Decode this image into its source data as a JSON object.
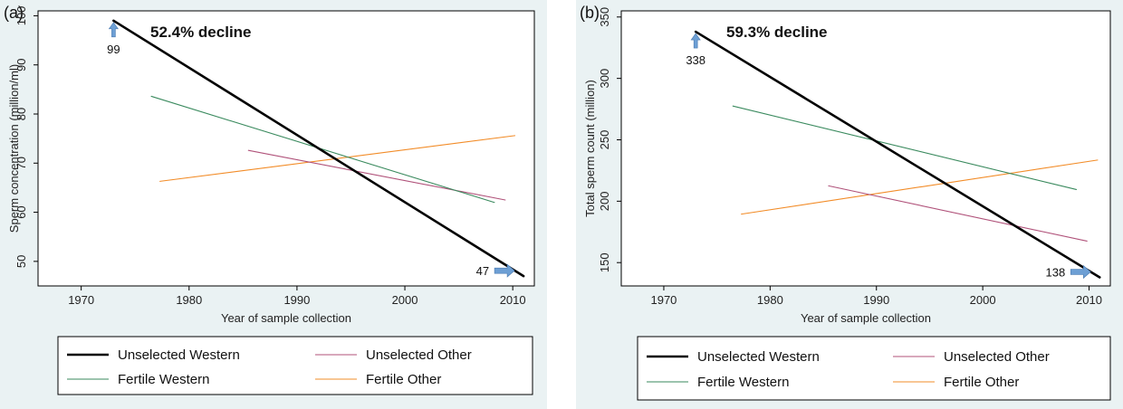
{
  "chart_data": [
    {
      "type": "line",
      "panel_label": "(a)",
      "xlabel": "Year of sample collection",
      "ylabel": "Sperm concentration (million/ml)",
      "xlim": [
        1966,
        2012
      ],
      "ylim": [
        45,
        101
      ],
      "xticks": [
        1970,
        1980,
        1990,
        2000,
        2010
      ],
      "yticks": [
        50,
        60,
        70,
        80,
        90,
        100
      ],
      "annotation": "52.4% decline",
      "start_value_label": "99",
      "end_value_label": "47",
      "series": [
        {
          "name": "Unselected Western",
          "color": "#000000",
          "width": 2.6,
          "x": [
            1973,
            2011
          ],
          "y": [
            99,
            47
          ]
        },
        {
          "name": "Unselected Other",
          "color": "#b0527a",
          "width": 1.1,
          "x": [
            1985.5,
            2009.3
          ],
          "y": [
            72.6,
            62.5
          ]
        },
        {
          "name": "Fertile Western",
          "color": "#3a8a5e",
          "width": 1.1,
          "x": [
            1976.5,
            2008.3
          ],
          "y": [
            83.6,
            62.0
          ]
        },
        {
          "name": "Fertile Other",
          "color": "#f28c28",
          "width": 1.1,
          "x": [
            1977.3,
            2010.2
          ],
          "y": [
            66.3,
            75.6
          ]
        }
      ]
    },
    {
      "type": "line",
      "panel_label": "(b)",
      "xlabel": "Year of sample collection",
      "ylabel": "Total sperm count (million)",
      "xlim": [
        1966,
        2012
      ],
      "ylim": [
        131,
        355
      ],
      "xticks": [
        1970,
        1980,
        1990,
        2000,
        2010
      ],
      "yticks": [
        150,
        200,
        250,
        300,
        350
      ],
      "annotation": "59.3% decline",
      "start_value_label": "338",
      "end_value_label": "138",
      "series": [
        {
          "name": "Unselected Western",
          "color": "#000000",
          "width": 2.6,
          "x": [
            1973,
            2011
          ],
          "y": [
            338,
            138
          ]
        },
        {
          "name": "Unselected Other",
          "color": "#b0527a",
          "width": 1.1,
          "x": [
            1985.5,
            2009.8
          ],
          "y": [
            212.5,
            167.5
          ]
        },
        {
          "name": "Fertile Western",
          "color": "#3a8a5e",
          "width": 1.1,
          "x": [
            1976.5,
            2008.8
          ],
          "y": [
            277.5,
            209.5
          ]
        },
        {
          "name": "Fertile Other",
          "color": "#f28c28",
          "width": 1.1,
          "x": [
            1977.3,
            2010.8
          ],
          "y": [
            189.5,
            233.5
          ]
        }
      ]
    }
  ],
  "legend": [
    {
      "name": "Unselected Western",
      "color": "#000000",
      "width": 2.6
    },
    {
      "name": "Unselected Other",
      "color": "#b0527a",
      "width": 1.1
    },
    {
      "name": "Fertile Western",
      "color": "#3a8a5e",
      "width": 1.1
    },
    {
      "name": "Fertile Other",
      "color": "#f28c28",
      "width": 1.1
    }
  ],
  "arrow_color": "#6d9fd4"
}
